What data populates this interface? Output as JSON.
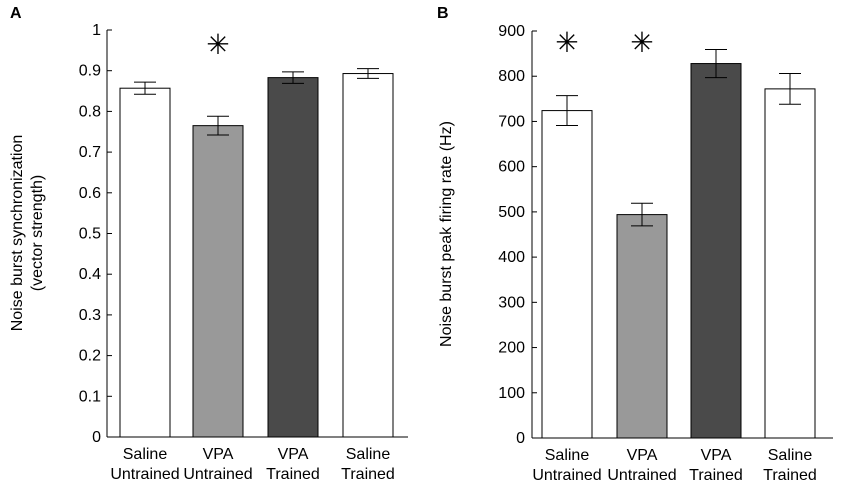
{
  "chart_data": [
    {
      "type": "bar",
      "panel_label": "A",
      "ylabel_lines": [
        "Noise burst synchronization",
        "(vector strength)"
      ],
      "categories": [
        {
          "line1": "Saline",
          "line2": "Untrained"
        },
        {
          "line1": "VPA",
          "line2": "Untrained"
        },
        {
          "line1": "VPA",
          "line2": "Trained"
        },
        {
          "line1": "Saline",
          "line2": "Trained"
        }
      ],
      "values": [
        0.857,
        0.765,
        0.883,
        0.893
      ],
      "errors": [
        0.015,
        0.023,
        0.014,
        0.012
      ],
      "bar_colors": [
        "#ffffff",
        "#999999",
        "#4a4a4a",
        "#ffffff"
      ],
      "significance": [
        "",
        "✳",
        "",
        ""
      ],
      "ylim": [
        0,
        1
      ],
      "yticks": [
        "0",
        "0.1",
        "0.2",
        "0.3",
        "0.4",
        "0.5",
        "0.6",
        "0.7",
        "0.8",
        "0.9",
        "1"
      ]
    },
    {
      "type": "bar",
      "panel_label": "B",
      "ylabel_lines": [
        "Noise burst peak firing rate (Hz)"
      ],
      "categories": [
        {
          "line1": "Saline",
          "line2": "Untrained"
        },
        {
          "line1": "VPA",
          "line2": "Untrained"
        },
        {
          "line1": "VPA",
          "line2": "Trained"
        },
        {
          "line1": "Saline",
          "line2": "Trained"
        }
      ],
      "values": [
        724,
        494,
        828,
        772
      ],
      "errors": [
        33,
        25,
        31,
        34
      ],
      "bar_colors": [
        "#ffffff",
        "#999999",
        "#4a4a4a",
        "#ffffff"
      ],
      "significance": [
        "✳",
        "✳",
        "",
        ""
      ],
      "ylim": [
        0,
        900
      ],
      "yticks": [
        "0",
        "100",
        "200",
        "300",
        "400",
        "500",
        "600",
        "700",
        "800",
        "900"
      ]
    }
  ]
}
